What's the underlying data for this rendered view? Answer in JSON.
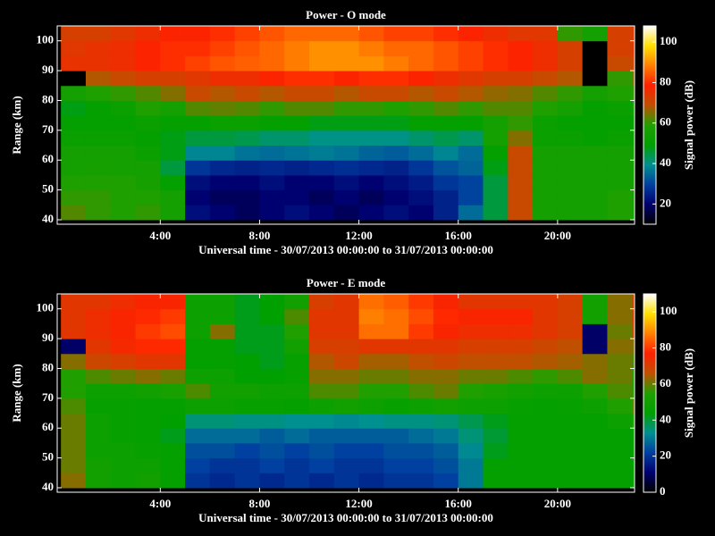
{
  "chart_data": [
    {
      "type": "heatmap",
      "title": "Power - O mode",
      "x_label": "Universal time - 30/07/2013 00:00:00 to 31/07/2013 00:00:00",
      "y_label": "Range (km)",
      "colorbar_label": "Signal power (dB)",
      "x": [
        0,
        1,
        2,
        3,
        4,
        5,
        6,
        7,
        8,
        9,
        10,
        11,
        12,
        13,
        14,
        15,
        16,
        17,
        18,
        19,
        20,
        21,
        22,
        23
      ],
      "y": [
        40,
        45,
        50,
        55,
        60,
        65,
        70,
        75,
        80,
        85,
        90,
        95,
        100
      ],
      "xlim": [
        -0.15,
        23.1
      ],
      "ylim": [
        38.5,
        105
      ],
      "xticks": [
        {
          "value": 4,
          "label": "4:00"
        },
        {
          "value": 8,
          "label": "8:00"
        },
        {
          "value": 12,
          "label": "12:00"
        },
        {
          "value": 16,
          "label": "16:00"
        },
        {
          "value": 20,
          "label": "20:00"
        }
      ],
      "yticks": [
        40,
        50,
        60,
        70,
        80,
        90,
        100
      ],
      "zlim": [
        10,
        108
      ],
      "zticks": [
        20,
        40,
        60,
        80,
        100
      ],
      "colormap": [
        "#000000",
        "#000070",
        "#0040a0",
        "#009090",
        "#00a000",
        "#20a000",
        "#c05000",
        "#ff2000",
        "#ff8000",
        "#ffe000",
        "#ffffff"
      ],
      "z": [
        [
          62,
          60,
          58,
          60,
          55,
          22,
          20,
          18,
          20,
          22,
          20,
          18,
          20,
          22,
          20,
          25,
          35,
          45,
          70,
          55,
          55,
          55,
          58,
          55
        ],
        [
          60,
          60,
          58,
          58,
          55,
          20,
          18,
          18,
          20,
          20,
          18,
          20,
          18,
          20,
          22,
          25,
          30,
          45,
          70,
          55,
          55,
          55,
          58,
          55
        ],
        [
          58,
          58,
          58,
          56,
          50,
          22,
          20,
          20,
          22,
          20,
          20,
          22,
          20,
          22,
          24,
          28,
          30,
          45,
          70,
          55,
          55,
          55,
          55,
          55
        ],
        [
          55,
          56,
          55,
          55,
          45,
          28,
          26,
          25,
          26,
          25,
          26,
          27,
          26,
          25,
          28,
          32,
          34,
          48,
          70,
          55,
          55,
          55,
          55,
          55
        ],
        [
          55,
          55,
          55,
          52,
          48,
          38,
          38,
          36,
          35,
          36,
          37,
          36,
          34,
          33,
          35,
          38,
          35,
          50,
          70,
          55,
          55,
          55,
          55,
          55
        ],
        [
          52,
          52,
          52,
          50,
          48,
          45,
          45,
          44,
          42,
          42,
          40,
          40,
          40,
          40,
          42,
          44,
          42,
          55,
          65,
          52,
          52,
          50,
          52,
          52
        ],
        [
          50,
          50,
          50,
          52,
          50,
          50,
          52,
          52,
          50,
          50,
          48,
          48,
          48,
          48,
          50,
          50,
          50,
          55,
          60,
          52,
          50,
          50,
          50,
          50
        ],
        [
          48,
          50,
          52,
          58,
          55,
          62,
          63,
          62,
          60,
          62,
          62,
          60,
          60,
          58,
          60,
          62,
          60,
          62,
          62,
          58,
          55,
          50,
          52,
          55
        ],
        [
          55,
          58,
          60,
          62,
          65,
          70,
          68,
          70,
          68,
          70,
          70,
          68,
          70,
          70,
          68,
          70,
          68,
          66,
          65,
          62,
          60,
          55,
          58,
          60
        ],
        [
          10,
          68,
          70,
          72,
          72,
          74,
          76,
          76,
          78,
          80,
          80,
          78,
          80,
          80,
          78,
          76,
          74,
          72,
          72,
          70,
          68,
          10,
          60,
          65
        ],
        [
          75,
          75,
          76,
          78,
          80,
          82,
          84,
          85,
          86,
          88,
          90,
          90,
          90,
          88,
          86,
          84,
          82,
          80,
          78,
          76,
          72,
          10,
          70,
          72
        ],
        [
          74,
          75,
          76,
          78,
          80,
          80,
          82,
          84,
          86,
          88,
          90,
          90,
          88,
          86,
          86,
          84,
          82,
          80,
          78,
          76,
          72,
          10,
          72,
          74
        ],
        [
          72,
          72,
          74,
          76,
          78,
          78,
          80,
          82,
          84,
          86,
          86,
          86,
          84,
          82,
          82,
          80,
          78,
          76,
          74,
          74,
          60,
          55,
          72,
          74
        ]
      ]
    },
    {
      "type": "heatmap",
      "title": "Power - E mode",
      "x_label": "Universal time - 30/07/2013 00:00:00 to 31/07/2013 00:00:00",
      "y_label": "Range (km)",
      "colorbar_label": "Signal power (dB)",
      "x": [
        0,
        1,
        2,
        3,
        4,
        5,
        6,
        7,
        8,
        9,
        10,
        11,
        12,
        13,
        14,
        15,
        16,
        17,
        18,
        19,
        20,
        21,
        22,
        23
      ],
      "y": [
        40,
        45,
        50,
        55,
        60,
        65,
        70,
        75,
        80,
        85,
        90,
        95,
        100
      ],
      "xlim": [
        -0.15,
        23.1
      ],
      "ylim": [
        38.5,
        105
      ],
      "xticks": [
        {
          "value": 4,
          "label": "4:00"
        },
        {
          "value": 8,
          "label": "8:00"
        },
        {
          "value": 12,
          "label": "12:00"
        },
        {
          "value": 16,
          "label": "16:00"
        },
        {
          "value": 20,
          "label": "20:00"
        }
      ],
      "yticks": [
        40,
        50,
        60,
        70,
        80,
        90,
        100
      ],
      "zlim": [
        0,
        110
      ],
      "zticks": [
        0,
        20,
        40,
        60,
        80,
        100
      ],
      "colormap": [
        "#000000",
        "#000070",
        "#0040a0",
        "#009090",
        "#00a000",
        "#20a000",
        "#c05000",
        "#ff2000",
        "#ff8000",
        "#ffe000",
        "#ffffff"
      ],
      "z": [
        [
          62,
          50,
          48,
          50,
          45,
          20,
          18,
          20,
          18,
          20,
          18,
          20,
          18,
          20,
          20,
          22,
          30,
          45,
          45,
          45,
          45,
          45,
          45,
          45
        ],
        [
          60,
          50,
          48,
          48,
          45,
          22,
          20,
          20,
          22,
          20,
          22,
          20,
          20,
          22,
          22,
          24,
          30,
          45,
          45,
          45,
          45,
          45,
          45,
          45
        ],
        [
          60,
          48,
          48,
          46,
          45,
          24,
          24,
          22,
          24,
          22,
          24,
          22,
          22,
          24,
          24,
          26,
          32,
          42,
          45,
          45,
          45,
          45,
          45,
          45
        ],
        [
          60,
          48,
          46,
          45,
          42,
          28,
          28,
          28,
          26,
          28,
          26,
          26,
          26,
          26,
          28,
          30,
          35,
          40,
          45,
          45,
          45,
          45,
          45,
          45
        ],
        [
          60,
          48,
          46,
          45,
          44,
          35,
          35,
          34,
          34,
          33,
          33,
          32,
          33,
          34,
          34,
          35,
          38,
          42,
          45,
          45,
          45,
          45,
          48,
          55
        ],
        [
          58,
          46,
          46,
          45,
          45,
          48,
          48,
          46,
          46,
          45,
          48,
          50,
          48,
          46,
          48,
          50,
          48,
          48,
          46,
          45,
          46,
          48,
          55,
          60
        ],
        [
          55,
          48,
          48,
          50,
          52,
          58,
          50,
          50,
          48,
          48,
          58,
          58,
          55,
          55,
          58,
          60,
          55,
          52,
          50,
          48,
          48,
          55,
          58,
          55
        ],
        [
          55,
          58,
          60,
          62,
          60,
          48,
          48,
          44,
          44,
          46,
          62,
          62,
          60,
          60,
          62,
          62,
          60,
          60,
          58,
          56,
          58,
          62,
          60,
          55
        ],
        [
          62,
          68,
          70,
          72,
          72,
          45,
          45,
          44,
          42,
          46,
          65,
          68,
          64,
          64,
          66,
          68,
          66,
          66,
          66,
          65,
          64,
          62,
          60,
          58
        ],
        [
          10,
          72,
          75,
          78,
          78,
          45,
          45,
          42,
          42,
          50,
          70,
          70,
          72,
          72,
          72,
          72,
          70,
          70,
          70,
          68,
          66,
          10,
          62,
          62
        ],
        [
          72,
          74,
          76,
          80,
          82,
          48,
          62,
          42,
          42,
          55,
          72,
          72,
          86,
          86,
          80,
          76,
          74,
          74,
          74,
          72,
          70,
          10,
          60,
          68
        ],
        [
          72,
          74,
          76,
          78,
          80,
          48,
          48,
          42,
          44,
          58,
          72,
          72,
          88,
          86,
          82,
          78,
          76,
          76,
          76,
          72,
          70,
          50,
          62,
          70
        ],
        [
          72,
          72,
          74,
          76,
          76,
          48,
          48,
          42,
          44,
          50,
          70,
          72,
          86,
          84,
          80,
          76,
          72,
          72,
          72,
          72,
          70,
          50,
          62,
          70
        ]
      ]
    }
  ]
}
